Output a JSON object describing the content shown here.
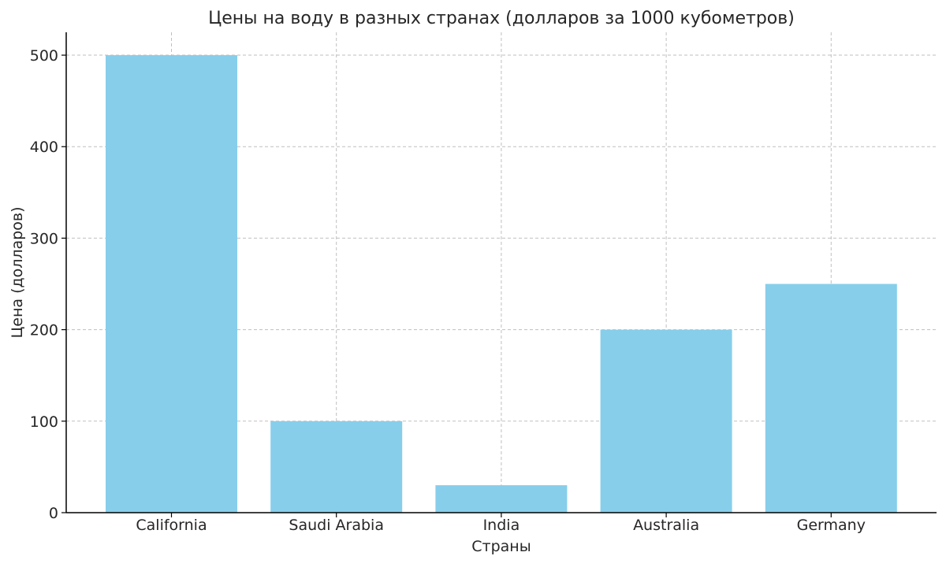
{
  "chart_data": {
    "type": "bar",
    "title": "Цены на воду в разных странах (долларов за 1000 кубометров)",
    "xlabel": "Страны",
    "ylabel": "Цена (долларов)",
    "categories": [
      "California",
      "Saudi Arabia",
      "India",
      "Australia",
      "Germany"
    ],
    "values": [
      500,
      100,
      30,
      200,
      250
    ],
    "ylim": [
      0,
      525
    ],
    "yticks": [
      0,
      100,
      200,
      300,
      400,
      500
    ],
    "grid": true,
    "bar_color": "#87CEEB"
  }
}
